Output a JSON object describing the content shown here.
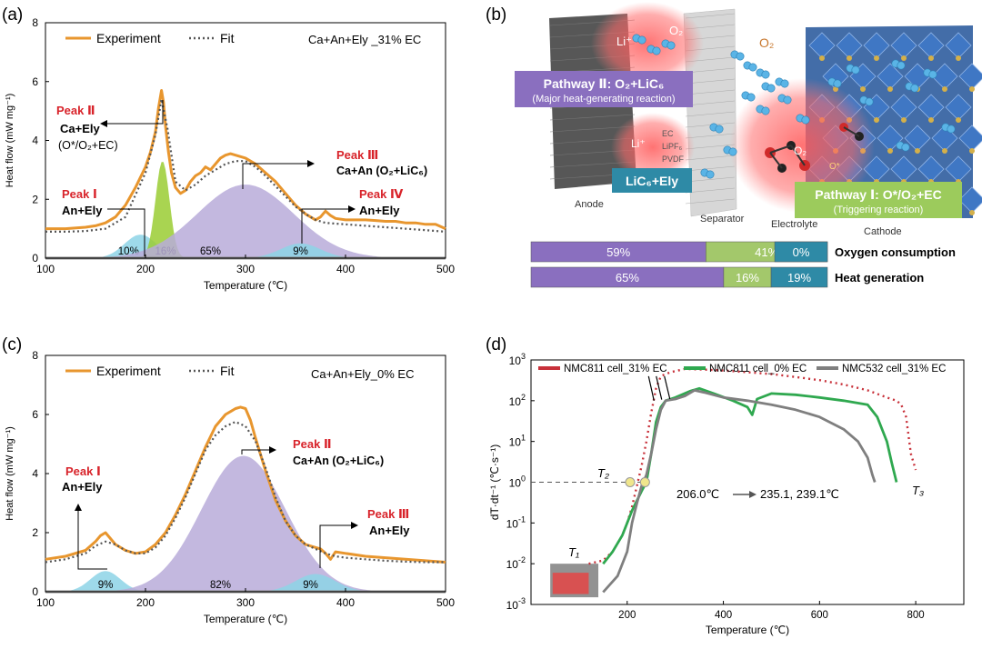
{
  "colors": {
    "experiment": "#e8962e",
    "fit": "#555555",
    "peak_red": "#d8232a",
    "purple_fill": "#b8acd9",
    "blue_fill": "#8dd3e6",
    "green_fill": "#9acd32",
    "bar_purple": "#8a6fbf",
    "bar_green": "#a3c86b",
    "bar_teal": "#2e8aa6",
    "line_red": "#c8313a",
    "line_green": "#2fa84f",
    "line_gray": "#7f7f7f",
    "pathway2_bg": "#8a6fbf",
    "pathway1_bg": "#9ccb5c",
    "lic6_bg": "#2e8aa6"
  },
  "chart_data": [
    {
      "id": "a",
      "type": "line",
      "panel_label": "(a)",
      "title": "Ca+An+Ely _31% EC",
      "xlabel": "Temperature (℃)",
      "ylabel": "Heat flow (mW mg⁻¹)",
      "xlim": [
        100,
        500
      ],
      "ylim": [
        0,
        8
      ],
      "xticks": [
        100,
        200,
        300,
        400,
        500
      ],
      "yticks": [
        0,
        2,
        4,
        6,
        8
      ],
      "legend": [
        "Experiment",
        "Fit"
      ],
      "series": [
        {
          "name": "Experiment",
          "x": [
            100,
            120,
            140,
            150,
            160,
            170,
            180,
            190,
            200,
            205,
            210,
            213,
            216,
            218,
            220,
            223,
            226,
            230,
            235,
            240,
            245,
            250,
            255,
            260,
            265,
            270,
            275,
            280,
            285,
            290,
            295,
            300,
            310,
            320,
            330,
            340,
            350,
            360,
            370,
            375,
            380,
            385,
            390,
            400,
            410,
            420,
            430,
            440,
            450,
            460,
            470,
            480,
            490,
            500
          ],
          "y": [
            1.0,
            1.0,
            1.05,
            1.1,
            1.2,
            1.4,
            1.8,
            2.4,
            3.1,
            3.6,
            4.3,
            5.1,
            5.7,
            5.3,
            4.5,
            3.6,
            2.9,
            2.4,
            2.2,
            2.3,
            2.6,
            2.8,
            2.9,
            3.1,
            3.0,
            3.2,
            3.4,
            3.5,
            3.55,
            3.5,
            3.45,
            3.4,
            3.2,
            2.9,
            2.6,
            2.2,
            1.8,
            1.5,
            1.3,
            1.4,
            1.6,
            1.45,
            1.35,
            1.3,
            1.3,
            1.3,
            1.28,
            1.25,
            1.25,
            1.2,
            1.2,
            1.15,
            1.15,
            1.0
          ]
        },
        {
          "name": "Fit",
          "x": [
            100,
            120,
            140,
            160,
            180,
            200,
            210,
            216,
            222,
            230,
            240,
            250,
            260,
            270,
            280,
            290,
            300,
            310,
            320,
            330,
            340,
            350,
            360,
            370,
            380,
            400,
            420,
            440,
            460,
            480,
            500
          ],
          "y": [
            0.9,
            0.9,
            0.92,
            1.0,
            1.4,
            2.9,
            4.2,
            5.4,
            4.4,
            2.6,
            2.3,
            2.5,
            2.8,
            3.0,
            3.2,
            3.3,
            3.3,
            3.1,
            2.8,
            2.45,
            2.1,
            1.75,
            1.5,
            1.3,
            1.2,
            1.15,
            1.1,
            1.05,
            1.0,
            0.95,
            0.9
          ]
        }
      ],
      "components": [
        {
          "label": "10%",
          "center": 195,
          "sigma": 16,
          "height": 0.8,
          "color_key": "blue_fill",
          "label_x": 183
        },
        {
          "label": "16%",
          "center": 217,
          "sigma": 7,
          "height": 3.3,
          "color_key": "green_fill",
          "label_x": 220
        },
        {
          "label": "65%",
          "center": 300,
          "sigma": 48,
          "height": 2.5,
          "color_key": "purple_fill",
          "label_x": 265
        },
        {
          "label": "9%",
          "center": 355,
          "sigma": 20,
          "height": 0.5,
          "color_key": "blue_fill",
          "label_x": 355
        }
      ],
      "annotations": [
        {
          "title": "Peak Ⅱ",
          "lines": [
            "Ca+Ely",
            "(O*/O₂+EC)"
          ],
          "arrow": "left"
        },
        {
          "title": "Peak Ⅲ",
          "lines": [
            "Ca+An (O₂+LiC₆)"
          ],
          "arrow": "right"
        },
        {
          "title": "Peak Ⅰ",
          "lines": [
            "An+Ely"
          ],
          "arrow": "right"
        },
        {
          "title": "Peak Ⅳ",
          "lines": [
            "An+Ely"
          ],
          "arrow": "right"
        }
      ]
    },
    {
      "id": "c",
      "type": "line",
      "panel_label": "(c)",
      "title": "Ca+An+Ely_0% EC",
      "xlabel": "Temperature (℃)",
      "ylabel": "Heat flow (mW mg⁻¹)",
      "xlim": [
        100,
        500
      ],
      "ylim": [
        0,
        8
      ],
      "xticks": [
        100,
        200,
        300,
        400,
        500
      ],
      "yticks": [
        0,
        2,
        4,
        6,
        8
      ],
      "legend": [
        "Experiment",
        "Fit"
      ],
      "series": [
        {
          "name": "Experiment",
          "x": [
            100,
            120,
            140,
            150,
            155,
            160,
            165,
            170,
            180,
            190,
            200,
            210,
            220,
            230,
            240,
            250,
            260,
            270,
            280,
            290,
            295,
            300,
            305,
            310,
            320,
            330,
            340,
            350,
            360,
            370,
            375,
            380,
            385,
            390,
            400,
            420,
            440,
            460,
            480,
            500
          ],
          "y": [
            1.1,
            1.2,
            1.4,
            1.7,
            1.9,
            2.0,
            1.8,
            1.6,
            1.4,
            1.3,
            1.35,
            1.6,
            2.0,
            2.6,
            3.3,
            4.1,
            4.9,
            5.6,
            6.0,
            6.2,
            6.25,
            6.2,
            5.8,
            5.2,
            4.1,
            3.1,
            2.4,
            1.9,
            1.6,
            1.5,
            1.45,
            1.3,
            1.1,
            1.35,
            1.3,
            1.2,
            1.15,
            1.1,
            1.05,
            1.0
          ]
        },
        {
          "name": "Fit",
          "x": [
            100,
            120,
            140,
            150,
            160,
            170,
            180,
            190,
            200,
            210,
            220,
            230,
            240,
            250,
            260,
            270,
            280,
            290,
            300,
            310,
            320,
            330,
            340,
            350,
            360,
            370,
            380,
            390,
            400,
            420,
            440,
            460,
            480,
            500
          ],
          "y": [
            1.0,
            1.1,
            1.3,
            1.55,
            1.7,
            1.6,
            1.4,
            1.3,
            1.3,
            1.5,
            1.9,
            2.5,
            3.2,
            4.0,
            4.8,
            5.3,
            5.6,
            5.75,
            5.6,
            5.1,
            4.2,
            3.2,
            2.4,
            1.9,
            1.6,
            1.45,
            1.3,
            1.2,
            1.15,
            1.1,
            1.05,
            1.02,
            1.0,
            1.0
          ]
        }
      ],
      "components": [
        {
          "label": "9%",
          "center": 160,
          "sigma": 15,
          "height": 0.7,
          "color_key": "blue_fill",
          "label_x": 160
        },
        {
          "label": "82%",
          "center": 298,
          "sigma": 42,
          "height": 4.6,
          "color_key": "purple_fill",
          "label_x": 275
        },
        {
          "label": "9%",
          "center": 370,
          "sigma": 20,
          "height": 0.6,
          "color_key": "blue_fill",
          "label_x": 365
        }
      ],
      "annotations": [
        {
          "title": "Peak Ⅰ",
          "lines": [
            "An+Ely"
          ],
          "arrow": "up"
        },
        {
          "title": "Peak Ⅱ",
          "lines": [
            "Ca+An (O₂+LiC₆)"
          ],
          "arrow": "right"
        },
        {
          "title": "Peak Ⅲ",
          "lines": [
            "An+Ely"
          ],
          "arrow": "right"
        }
      ]
    },
    {
      "id": "b_bars",
      "type": "bar",
      "orientation": "horizontal-stacked",
      "categories": [
        "Oxygen consumption",
        "Heat generation"
      ],
      "series": [
        {
          "name": "Pathway II",
          "values": [
            59,
            65
          ],
          "labels": [
            "59%",
            "65%"
          ]
        },
        {
          "name": "Pathway I",
          "values": [
            41,
            16
          ],
          "labels": [
            "41%",
            "16%"
          ]
        },
        {
          "name": "LiC6+Ely",
          "values": [
            0,
            19
          ],
          "labels": [
            "0%",
            "19%"
          ]
        }
      ]
    },
    {
      "id": "d",
      "type": "line",
      "panel_label": "(d)",
      "xlabel": "Temperature (℃)",
      "ylabel": "dT·dt⁻¹ (℃·s⁻¹)",
      "xlim": [
        0,
        900
      ],
      "xticks": [
        200,
        400,
        600,
        800
      ],
      "yscale": "log",
      "ylim_exp": [
        -3,
        3
      ],
      "ytick_exps": [
        -3,
        -2,
        -1,
        0,
        1,
        2,
        3
      ],
      "legend": [
        "NMC811 cell_31% EC",
        "NMC811 cell_0% EC",
        "NMC532 cell_31% EC"
      ],
      "series": [
        {
          "name": "NMC811 cell_31% EC",
          "style": "dotted",
          "x": [
            120,
            150,
            170,
            190,
            200,
            210,
            220,
            230,
            240,
            250,
            260,
            270,
            290,
            320,
            360,
            400,
            450,
            500,
            550,
            600,
            650,
            700,
            740,
            760,
            770,
            780,
            790,
            800
          ],
          "y": [
            0.01,
            0.012,
            0.02,
            0.05,
            0.1,
            0.25,
            0.8,
            2.5,
            10,
            50,
            200,
            400,
            500,
            600,
            580,
            550,
            500,
            450,
            380,
            320,
            250,
            180,
            120,
            100,
            80,
            40,
            5,
            2
          ]
        },
        {
          "name": "NMC811 cell_0% EC",
          "style": "solid",
          "x": [
            150,
            170,
            190,
            210,
            230,
            240,
            250,
            260,
            270,
            280,
            300,
            330,
            350,
            380,
            420,
            450,
            460,
            470,
            500,
            550,
            600,
            650,
            700,
            720,
            740,
            750,
            760
          ],
          "y": [
            0.01,
            0.02,
            0.05,
            0.2,
            0.6,
            1.0,
            5,
            30,
            70,
            100,
            120,
            170,
            200,
            150,
            100,
            70,
            45,
            110,
            150,
            140,
            120,
            100,
            80,
            40,
            10,
            3,
            1
          ]
        },
        {
          "name": "NMC532 cell_31% EC",
          "style": "solid",
          "x": [
            150,
            180,
            200,
            210,
            220,
            230,
            240,
            250,
            260,
            270,
            280,
            300,
            320,
            340,
            360,
            400,
            450,
            500,
            550,
            600,
            650,
            680,
            700,
            710,
            715
          ],
          "y": [
            0.002,
            0.005,
            0.02,
            0.1,
            0.3,
            0.8,
            1.5,
            5,
            20,
            60,
            100,
            110,
            130,
            180,
            160,
            120,
            100,
            80,
            60,
            40,
            20,
            10,
            4,
            1.5,
            1
          ]
        }
      ],
      "annotations": [
        {
          "text": "206.0℃",
          "arrow_to": "235.1, 239.1℃"
        },
        {
          "text": "T₁"
        },
        {
          "text": "T₂"
        },
        {
          "text": "T₃"
        }
      ]
    }
  ],
  "panel_a": {
    "peak_i_title": "Peak Ⅰ",
    "peak_i_line": "An+Ely"
  },
  "panel_b": {
    "label": "(b)",
    "o2": "O₂",
    "li_plus": "Li⁺",
    "o2_small": "O₂",
    "ec": "EC",
    "lipf": "LiPF₆",
    "pvdf": "PVDF",
    "pathway2_title": "Pathway Ⅱ: O₂+LiC₆",
    "pathway2_sub": "(Major heat-generating reaction)",
    "pathway1_title": "Pathway Ⅰ: O*/O₂+EC",
    "pathway1_sub": "(Triggering reaction)",
    "lic6_label": "LiC₆+Ely",
    "anode": "Anode",
    "separator": "Separator",
    "electrolyte": "Electrolyte",
    "cathode": "Cathode",
    "o_star": "O*"
  }
}
